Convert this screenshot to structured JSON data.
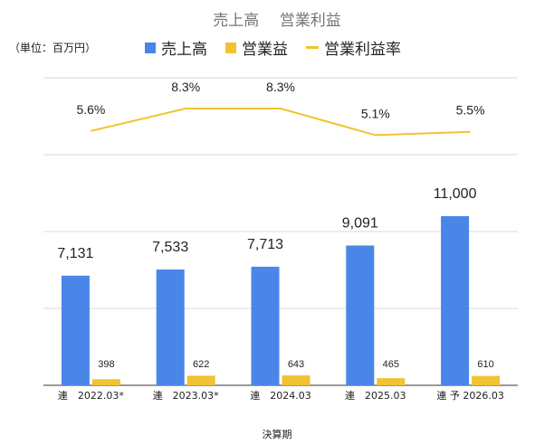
{
  "chart_data": {
    "type": "bar",
    "title": "売上高　 営業利益",
    "unit_note": "（単位：百万円）",
    "xlabel": "決算期",
    "categories": [
      "連　2022.03*",
      "連　2023.03*",
      "連　2024.03",
      "連　2025.03",
      "連 予 2026.03"
    ],
    "series": [
      {
        "name": "売上高",
        "type": "bar",
        "color": "#4a86e8",
        "values": [
          7131,
          7533,
          7713,
          9091,
          11000
        ],
        "labels": [
          "7,131",
          "7,533",
          "7,713",
          "9,091",
          "11,000"
        ]
      },
      {
        "name": "営業益",
        "type": "bar",
        "color": "#f1c232",
        "values": [
          398,
          622,
          643,
          465,
          610
        ],
        "labels": [
          "398",
          "622",
          "643",
          "465",
          "610"
        ]
      },
      {
        "name": "営業利益率",
        "type": "line",
        "axis": "secondary",
        "color": "#f1c232",
        "values": [
          5.6,
          8.3,
          8.3,
          5.1,
          5.5
        ],
        "labels": [
          "5.6%",
          "8.3%",
          "8.3%",
          "5.1%",
          "5.5%"
        ]
      }
    ],
    "ylim": [
      0,
      20000
    ],
    "y2lim": [
      -25,
      12
    ],
    "grid": true,
    "legend_position": "top"
  }
}
